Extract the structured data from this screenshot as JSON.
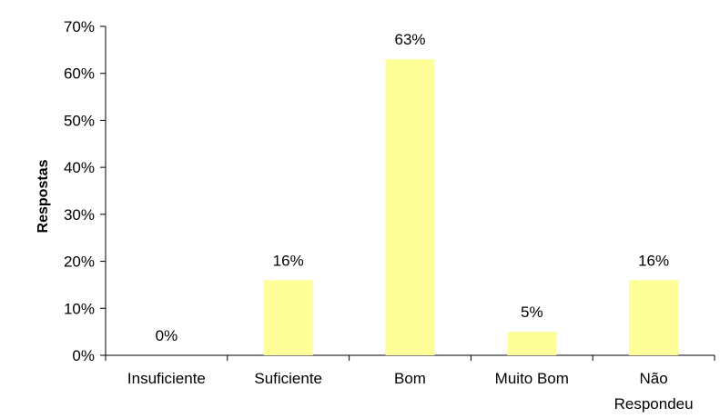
{
  "chart_data": {
    "type": "bar",
    "title": "",
    "xlabel": "",
    "ylabel": "Respostas",
    "categories": [
      "Insuficiente",
      "Suficiente",
      "Bom",
      "Muito Bom",
      "Não Respondeu"
    ],
    "category_lines": [
      [
        "Insuficiente"
      ],
      [
        "Suficiente"
      ],
      [
        "Bom"
      ],
      [
        "Muito Bom"
      ],
      [
        "Não",
        "Respondeu"
      ]
    ],
    "values": [
      0,
      16,
      63,
      5,
      16
    ],
    "data_labels": [
      "0%",
      "16%",
      "63%",
      "5%",
      "16%"
    ],
    "ylim": [
      0,
      70
    ],
    "yticks": [
      0,
      10,
      20,
      30,
      40,
      50,
      60,
      70
    ],
    "ytick_labels": [
      "0%",
      "10%",
      "20%",
      "30%",
      "40%",
      "50%",
      "60%",
      "70%"
    ],
    "grid": false,
    "legend": "none",
    "bar_color": "#FFFF99",
    "axis_color": "#000000"
  }
}
